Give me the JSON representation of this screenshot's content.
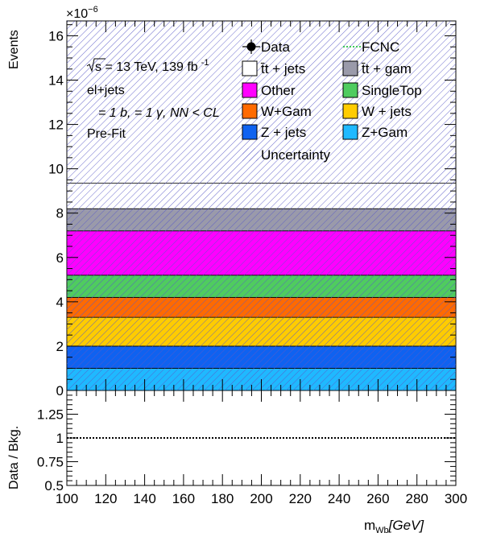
{
  "chart_data": {
    "type": "bar",
    "subtype": "stacked-histogram-with-ratio",
    "x_range": [
      100,
      300
    ],
    "y_range": [
      0,
      16.67
    ],
    "y_exponent_label": "×10",
    "y_exponent_power": "−6",
    "ylabel": "Events",
    "ratio_ylabel": "Data / Bkg.",
    "ratio_range": [
      0.5,
      1.5
    ],
    "ratio_reference": 1,
    "xlabel_main": "m",
    "xlabel_sub": "Wb",
    "xlabel_unit": "[GeV]",
    "x_ticks": [
      "100",
      "120",
      "140",
      "160",
      "180",
      "200",
      "220",
      "240",
      "260",
      "280",
      "300"
    ],
    "y_ticks": [
      "0",
      "2",
      "4",
      "6",
      "8",
      "10",
      "12",
      "14",
      "16"
    ],
    "ratio_ticks": [
      "0.5",
      "0.75",
      "1",
      "1.25"
    ],
    "annotations": {
      "energy_prefix": "s",
      "energy_text": " = 13 TeV, 139 fb",
      "energy_sup": "-1",
      "channel": "el+jets",
      "selection": "= 1 b, = 1 γ, NN < CL",
      "fit": "Pre-Fit"
    },
    "stack": [
      {
        "name": "Z+Gam",
        "value": 1.0,
        "color": "#1fb9ff"
      },
      {
        "name": "Z + jets",
        "value": 1.0,
        "color": "#0f62f0"
      },
      {
        "name": "W + jets",
        "value": 1.3,
        "color": "#ffcc00"
      },
      {
        "name": "W+Gam",
        "value": 0.9,
        "color": "#ff6a00"
      },
      {
        "name": "SingleTop",
        "value": 1.0,
        "color": "#4fcc5f"
      },
      {
        "name": "Other",
        "value": 2.0,
        "color": "#ff00ff"
      },
      {
        "name": "t̄t + gam",
        "value": 1.0,
        "color": "#9a9aaa"
      },
      {
        "name": "t̄t + jets",
        "value": 1.15,
        "color": "#ffffff"
      }
    ],
    "uncertainty_top": 16.67,
    "legend": [
      {
        "label": "Data",
        "kind": "data"
      },
      {
        "label": "FCNC",
        "kind": "dashed-line",
        "color": "#3ec85a"
      },
      {
        "label": "t̄t + jets",
        "kind": "box",
        "color": "#ffffff"
      },
      {
        "label": "t̄t +  gam",
        "kind": "box",
        "color": "#9a9aaa"
      },
      {
        "label": "Other",
        "kind": "box",
        "color": "#ff00ff"
      },
      {
        "label": "SingleTop",
        "kind": "box",
        "color": "#4fcc5f"
      },
      {
        "label": "W+Gam",
        "kind": "box",
        "color": "#ff6a00"
      },
      {
        "label": "W + jets",
        "kind": "box",
        "color": "#ffcc00"
      },
      {
        "label": "Z + jets",
        "kind": "box",
        "color": "#0f62f0"
      },
      {
        "label": "Z+Gam",
        "kind": "box",
        "color": "#1fb9ff"
      },
      {
        "label": "Uncertainty",
        "kind": "hatch"
      }
    ],
    "legend_position": "top-right",
    "grid": false
  }
}
